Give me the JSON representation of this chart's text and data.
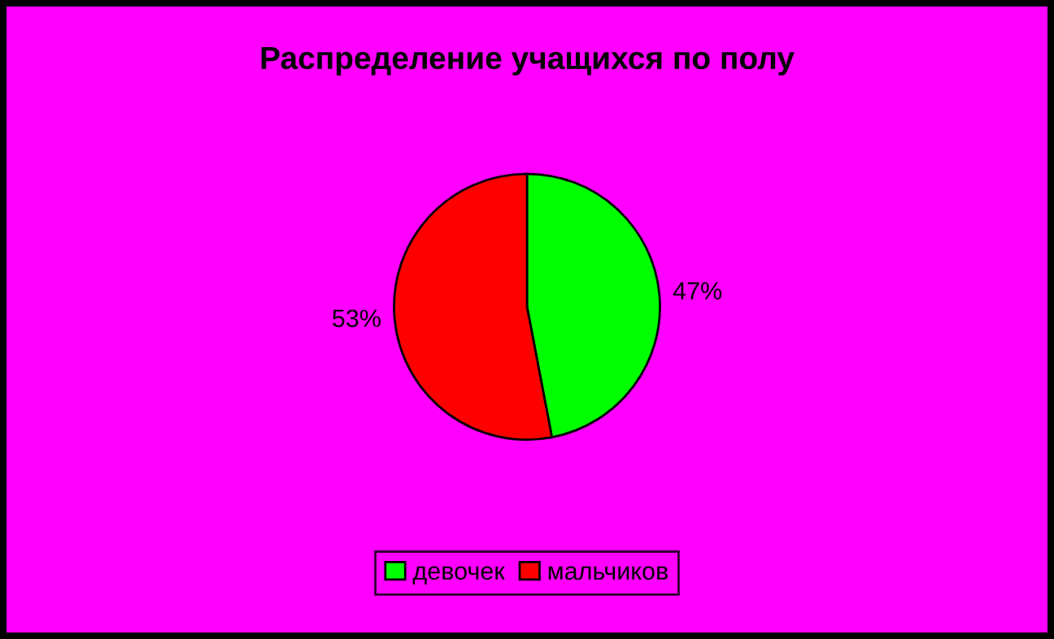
{
  "chart_data": {
    "type": "pie",
    "title": "Распределение учащихся по полу",
    "categories": [
      "девочек",
      "мальчиков"
    ],
    "values": [
      47,
      53
    ],
    "colors": [
      "#00ff00",
      "#ff0000"
    ],
    "value_labels": [
      "47%",
      "53%"
    ],
    "legend": "bottom"
  }
}
